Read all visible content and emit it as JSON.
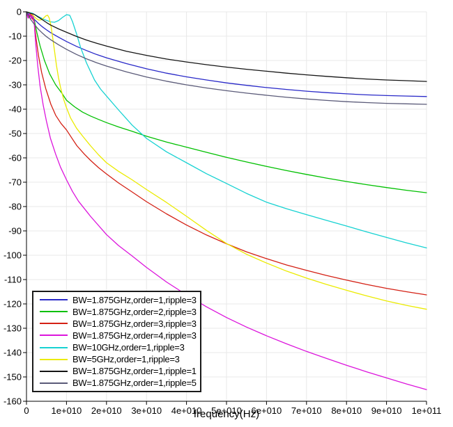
{
  "colors": {
    "background": "#ffffff",
    "axis": "#000000",
    "grid": "#e8e8e8",
    "text": "#000000",
    "legend_border": "#1a1a1a"
  },
  "chart_data": {
    "type": "line",
    "title": "",
    "xlabel": "frequency(Hz)",
    "ylabel": "",
    "xlim": [
      0,
      100000000000.0
    ],
    "ylim": [
      -160,
      0
    ],
    "grid": true,
    "legend_position": "lower-left",
    "x_multiplier": 10000000000.0,
    "x_ticks": [
      {
        "v": 0,
        "label": "0"
      },
      {
        "v": 10000000000.0,
        "label": "1e+010"
      },
      {
        "v": 20000000000.0,
        "label": "2e+010"
      },
      {
        "v": 30000000000.0,
        "label": "3e+010"
      },
      {
        "v": 40000000000.0,
        "label": "4e+010"
      },
      {
        "v": 50000000000.0,
        "label": "5e+010"
      },
      {
        "v": 60000000000.0,
        "label": "6e+010"
      },
      {
        "v": 70000000000.0,
        "label": "7e+010"
      },
      {
        "v": 80000000000.0,
        "label": "8e+010"
      },
      {
        "v": 90000000000.0,
        "label": "9e+010"
      },
      {
        "v": 100000000000.0,
        "label": "1e+011"
      }
    ],
    "y_ticks": [
      {
        "v": 0,
        "label": "0"
      },
      {
        "v": -10,
        "label": "-10"
      },
      {
        "v": -20,
        "label": "-20"
      },
      {
        "v": -30,
        "label": "-30"
      },
      {
        "v": -40,
        "label": "-40"
      },
      {
        "v": -50,
        "label": "-50"
      },
      {
        "v": -60,
        "label": "-60"
      },
      {
        "v": -70,
        "label": "-70"
      },
      {
        "v": -80,
        "label": "-80"
      },
      {
        "v": -90,
        "label": "-90"
      },
      {
        "v": -100,
        "label": "-100"
      },
      {
        "v": -110,
        "label": "-110"
      },
      {
        "v": -120,
        "label": "-120"
      },
      {
        "v": -130,
        "label": "-130"
      },
      {
        "v": -140,
        "label": "-140"
      },
      {
        "v": -150,
        "label": "-150"
      },
      {
        "v": -160,
        "label": "-160"
      }
    ],
    "series": [
      {
        "name": "BW=1.875GHz,order=1,ripple=3",
        "color": "#2828c8",
        "points": [
          [
            0,
            0
          ],
          [
            0.1,
            -1.8
          ],
          [
            0.19,
            -3
          ],
          [
            0.3,
            -4.8
          ],
          [
            0.4,
            -6.2
          ],
          [
            0.5,
            -7.4
          ],
          [
            0.6,
            -8.5
          ],
          [
            0.8,
            -10.4
          ],
          [
            1,
            -12.2
          ],
          [
            1.25,
            -14.2
          ],
          [
            1.5,
            -15.9
          ],
          [
            1.75,
            -17.5
          ],
          [
            2,
            -18.9
          ],
          [
            2.5,
            -21.3
          ],
          [
            3,
            -23.4
          ],
          [
            3.5,
            -25.2
          ],
          [
            4,
            -26.7
          ],
          [
            4.5,
            -28
          ],
          [
            5,
            -29.2
          ],
          [
            5.5,
            -30.2
          ],
          [
            6,
            -31.1
          ],
          [
            6.5,
            -31.9
          ],
          [
            7,
            -32.6
          ],
          [
            7.5,
            -33.2
          ],
          [
            8,
            -33.7
          ],
          [
            8.5,
            -34.1
          ],
          [
            9,
            -34.4
          ],
          [
            9.5,
            -34.6
          ],
          [
            10,
            -34.8
          ]
        ]
      },
      {
        "name": "BW=1.875GHz,order=2,ripple=3",
        "color": "#00c000",
        "points": [
          [
            0,
            -0.1
          ],
          [
            0.07,
            -2.3
          ],
          [
            0.13,
            -0.6
          ],
          [
            0.19,
            -3
          ],
          [
            0.26,
            -8.5
          ],
          [
            0.34,
            -14
          ],
          [
            0.45,
            -20
          ],
          [
            0.58,
            -25.5
          ],
          [
            0.73,
            -30
          ],
          [
            0.9,
            -33.8
          ],
          [
            1,
            -36.3
          ],
          [
            1.2,
            -39
          ],
          [
            1.4,
            -41.2
          ],
          [
            1.6,
            -42.8
          ],
          [
            1.8,
            -44.2
          ],
          [
            2,
            -45.5
          ],
          [
            2.3,
            -47.3
          ],
          [
            2.64,
            -49.1
          ],
          [
            3,
            -51.1
          ],
          [
            3.5,
            -53.5
          ],
          [
            4,
            -55.6
          ],
          [
            4.5,
            -57.7
          ],
          [
            5,
            -59.8
          ],
          [
            5.5,
            -61.7
          ],
          [
            6,
            -63.5
          ],
          [
            6.5,
            -65.2
          ],
          [
            7,
            -66.8
          ],
          [
            7.5,
            -68.3
          ],
          [
            8,
            -69.7
          ],
          [
            8.5,
            -71
          ],
          [
            9,
            -72.2
          ],
          [
            9.5,
            -73.3
          ],
          [
            10,
            -74.3
          ]
        ]
      },
      {
        "name": "BW=1.875GHz,order=3,ripple=3",
        "color": "#d42014",
        "points": [
          [
            0,
            0
          ],
          [
            0.05,
            -2.5
          ],
          [
            0.1,
            -0.6
          ],
          [
            0.15,
            -2.8
          ],
          [
            0.19,
            -4
          ],
          [
            0.24,
            -11
          ],
          [
            0.3,
            -18
          ],
          [
            0.38,
            -25
          ],
          [
            0.48,
            -31.5
          ],
          [
            0.61,
            -38
          ],
          [
            0.73,
            -42.5
          ],
          [
            0.86,
            -45.8
          ],
          [
            1,
            -48.5
          ],
          [
            1.13,
            -51.8
          ],
          [
            1.26,
            -55
          ],
          [
            1.45,
            -58.5
          ],
          [
            1.6,
            -61
          ],
          [
            1.8,
            -64
          ],
          [
            2,
            -66.6
          ],
          [
            2.3,
            -70.3
          ],
          [
            2.64,
            -74
          ],
          [
            3,
            -78
          ],
          [
            3.5,
            -83
          ],
          [
            4,
            -87.6
          ],
          [
            4.5,
            -91.7
          ],
          [
            5,
            -95.3
          ],
          [
            5.5,
            -98.6
          ],
          [
            6,
            -101.4
          ],
          [
            6.5,
            -104
          ],
          [
            7,
            -106.2
          ],
          [
            7.5,
            -108.3
          ],
          [
            8,
            -110.2
          ],
          [
            8.5,
            -112
          ],
          [
            9,
            -113.6
          ],
          [
            9.5,
            -115
          ],
          [
            10,
            -116.3
          ]
        ]
      },
      {
        "name": "BW=1.875GHz,order=4,ripple=3",
        "color": "#dc14dc",
        "points": [
          [
            0,
            -0.2
          ],
          [
            0.04,
            -2.6
          ],
          [
            0.08,
            -0.5
          ],
          [
            0.12,
            -2.8
          ],
          [
            0.155,
            -0.7
          ],
          [
            0.19,
            -4
          ],
          [
            0.23,
            -13
          ],
          [
            0.28,
            -22
          ],
          [
            0.34,
            -30.5
          ],
          [
            0.42,
            -38.5
          ],
          [
            0.5,
            -45
          ],
          [
            0.6,
            -52
          ],
          [
            0.73,
            -58.5
          ],
          [
            0.85,
            -63.8
          ],
          [
            1,
            -69
          ],
          [
            1.15,
            -73.8
          ],
          [
            1.3,
            -77.8
          ],
          [
            1.6,
            -84
          ],
          [
            2,
            -91.5
          ],
          [
            2.3,
            -96
          ],
          [
            2.64,
            -100.3
          ],
          [
            3,
            -105
          ],
          [
            3.5,
            -111
          ],
          [
            4,
            -116.3
          ],
          [
            4.5,
            -121.2
          ],
          [
            5,
            -125.6
          ],
          [
            5.5,
            -129.5
          ],
          [
            6,
            -133.1
          ],
          [
            6.5,
            -136.4
          ],
          [
            7,
            -139.5
          ],
          [
            7.5,
            -142.4
          ],
          [
            8,
            -145.2
          ],
          [
            8.5,
            -147.9
          ],
          [
            9,
            -150.4
          ],
          [
            9.5,
            -152.9
          ],
          [
            10,
            -155.2
          ]
        ]
      },
      {
        "name": "BW=10GHz,order=1,ripple=3",
        "color": "#16d2d2",
        "points": [
          [
            0,
            0
          ],
          [
            0.15,
            -0.6
          ],
          [
            0.3,
            -2
          ],
          [
            0.45,
            -3.2
          ],
          [
            0.6,
            -4.1
          ],
          [
            0.7,
            -4.3
          ],
          [
            0.8,
            -3.6
          ],
          [
            0.9,
            -2.3
          ],
          [
            1,
            -1.2
          ],
          [
            1.08,
            -1.4
          ],
          [
            1.15,
            -4
          ],
          [
            1.25,
            -9
          ],
          [
            1.35,
            -14.5
          ],
          [
            1.5,
            -21
          ],
          [
            1.7,
            -28
          ],
          [
            1.85,
            -31.7
          ],
          [
            2,
            -34.6
          ],
          [
            2.3,
            -40.3
          ],
          [
            2.64,
            -46.5
          ],
          [
            3,
            -52
          ],
          [
            3.5,
            -57.5
          ],
          [
            4,
            -62
          ],
          [
            4.5,
            -66.5
          ],
          [
            5,
            -70.5
          ],
          [
            5.5,
            -74.6
          ],
          [
            6,
            -78.2
          ],
          [
            6.5,
            -80.9
          ],
          [
            7,
            -83.3
          ],
          [
            7.5,
            -85.7
          ],
          [
            8,
            -88
          ],
          [
            8.5,
            -90.4
          ],
          [
            9,
            -92.7
          ],
          [
            9.5,
            -94.9
          ],
          [
            10,
            -97
          ]
        ]
      },
      {
        "name": "BW=5GHz,order=1,ripple=3",
        "color": "#ebeb00",
        "points": [
          [
            0,
            0
          ],
          [
            0.08,
            -0.4
          ],
          [
            0.16,
            -1.4
          ],
          [
            0.24,
            -2.7
          ],
          [
            0.31,
            -3.4
          ],
          [
            0.37,
            -3.3
          ],
          [
            0.43,
            -2.5
          ],
          [
            0.49,
            -1.6
          ],
          [
            0.53,
            -1.4
          ],
          [
            0.57,
            -2.6
          ],
          [
            0.61,
            -5.5
          ],
          [
            0.65,
            -10
          ],
          [
            0.7,
            -16
          ],
          [
            0.75,
            -22
          ],
          [
            0.8,
            -27
          ],
          [
            0.85,
            -31
          ],
          [
            0.93,
            -36
          ],
          [
            1,
            -39.4
          ],
          [
            1.1,
            -43.5
          ],
          [
            1.25,
            -47.8
          ],
          [
            1.4,
            -51
          ],
          [
            1.6,
            -55
          ],
          [
            1.8,
            -58.7
          ],
          [
            2,
            -62
          ],
          [
            2.3,
            -65.5
          ],
          [
            2.64,
            -69
          ],
          [
            3,
            -73
          ],
          [
            3.5,
            -78.3
          ],
          [
            4,
            -84
          ],
          [
            4.5,
            -89.8
          ],
          [
            5,
            -95.2
          ],
          [
            5.5,
            -99.6
          ],
          [
            6,
            -103.2
          ],
          [
            6.5,
            -106.5
          ],
          [
            7,
            -109.4
          ],
          [
            7.5,
            -112
          ],
          [
            8,
            -114.4
          ],
          [
            8.5,
            -116.7
          ],
          [
            9,
            -118.8
          ],
          [
            9.5,
            -120.6
          ],
          [
            10,
            -122.2
          ]
        ]
      },
      {
        "name": "BW=1.875GHz,order=1,ripple=1",
        "color": "#141414",
        "points": [
          [
            0,
            0
          ],
          [
            0.1,
            -0.6
          ],
          [
            0.19,
            -1
          ],
          [
            0.3,
            -2.2
          ],
          [
            0.4,
            -3.3
          ],
          [
            0.5,
            -4.4
          ],
          [
            0.6,
            -5.4
          ],
          [
            0.8,
            -7
          ],
          [
            1,
            -8.4
          ],
          [
            1.25,
            -10.1
          ],
          [
            1.5,
            -11.6
          ],
          [
            1.75,
            -12.9
          ],
          [
            2,
            -14.1
          ],
          [
            2.5,
            -16.2
          ],
          [
            3,
            -17.9
          ],
          [
            3.5,
            -19.4
          ],
          [
            4,
            -20.6
          ],
          [
            4.5,
            -21.7
          ],
          [
            5,
            -22.7
          ],
          [
            5.5,
            -23.6
          ],
          [
            6,
            -24.4
          ],
          [
            6.5,
            -25.2
          ],
          [
            7,
            -25.9
          ],
          [
            7.5,
            -26.5
          ],
          [
            8,
            -27.1
          ],
          [
            8.5,
            -27.6
          ],
          [
            9,
            -28
          ],
          [
            9.5,
            -28.3
          ],
          [
            10,
            -28.6
          ]
        ]
      },
      {
        "name": "BW=1.875GHz,order=1,ripple=5",
        "color": "#5a5a78",
        "points": [
          [
            0,
            0
          ],
          [
            0.1,
            -3
          ],
          [
            0.19,
            -5
          ],
          [
            0.3,
            -7.2
          ],
          [
            0.4,
            -8.8
          ],
          [
            0.5,
            -10.2
          ],
          [
            0.6,
            -11.4
          ],
          [
            0.8,
            -13.5
          ],
          [
            1,
            -15.4
          ],
          [
            1.25,
            -17.5
          ],
          [
            1.5,
            -19.3
          ],
          [
            1.75,
            -20.9
          ],
          [
            2,
            -22.3
          ],
          [
            2.5,
            -24.7
          ],
          [
            3,
            -26.8
          ],
          [
            3.5,
            -28.5
          ],
          [
            4,
            -30
          ],
          [
            4.5,
            -31.3
          ],
          [
            5,
            -32.4
          ],
          [
            5.5,
            -33.4
          ],
          [
            6,
            -34.3
          ],
          [
            6.5,
            -35.1
          ],
          [
            7,
            -35.8
          ],
          [
            7.5,
            -36.4
          ],
          [
            8,
            -36.9
          ],
          [
            8.5,
            -37.3
          ],
          [
            9,
            -37.6
          ],
          [
            9.5,
            -37.8
          ],
          [
            10,
            -38
          ]
        ]
      }
    ]
  }
}
